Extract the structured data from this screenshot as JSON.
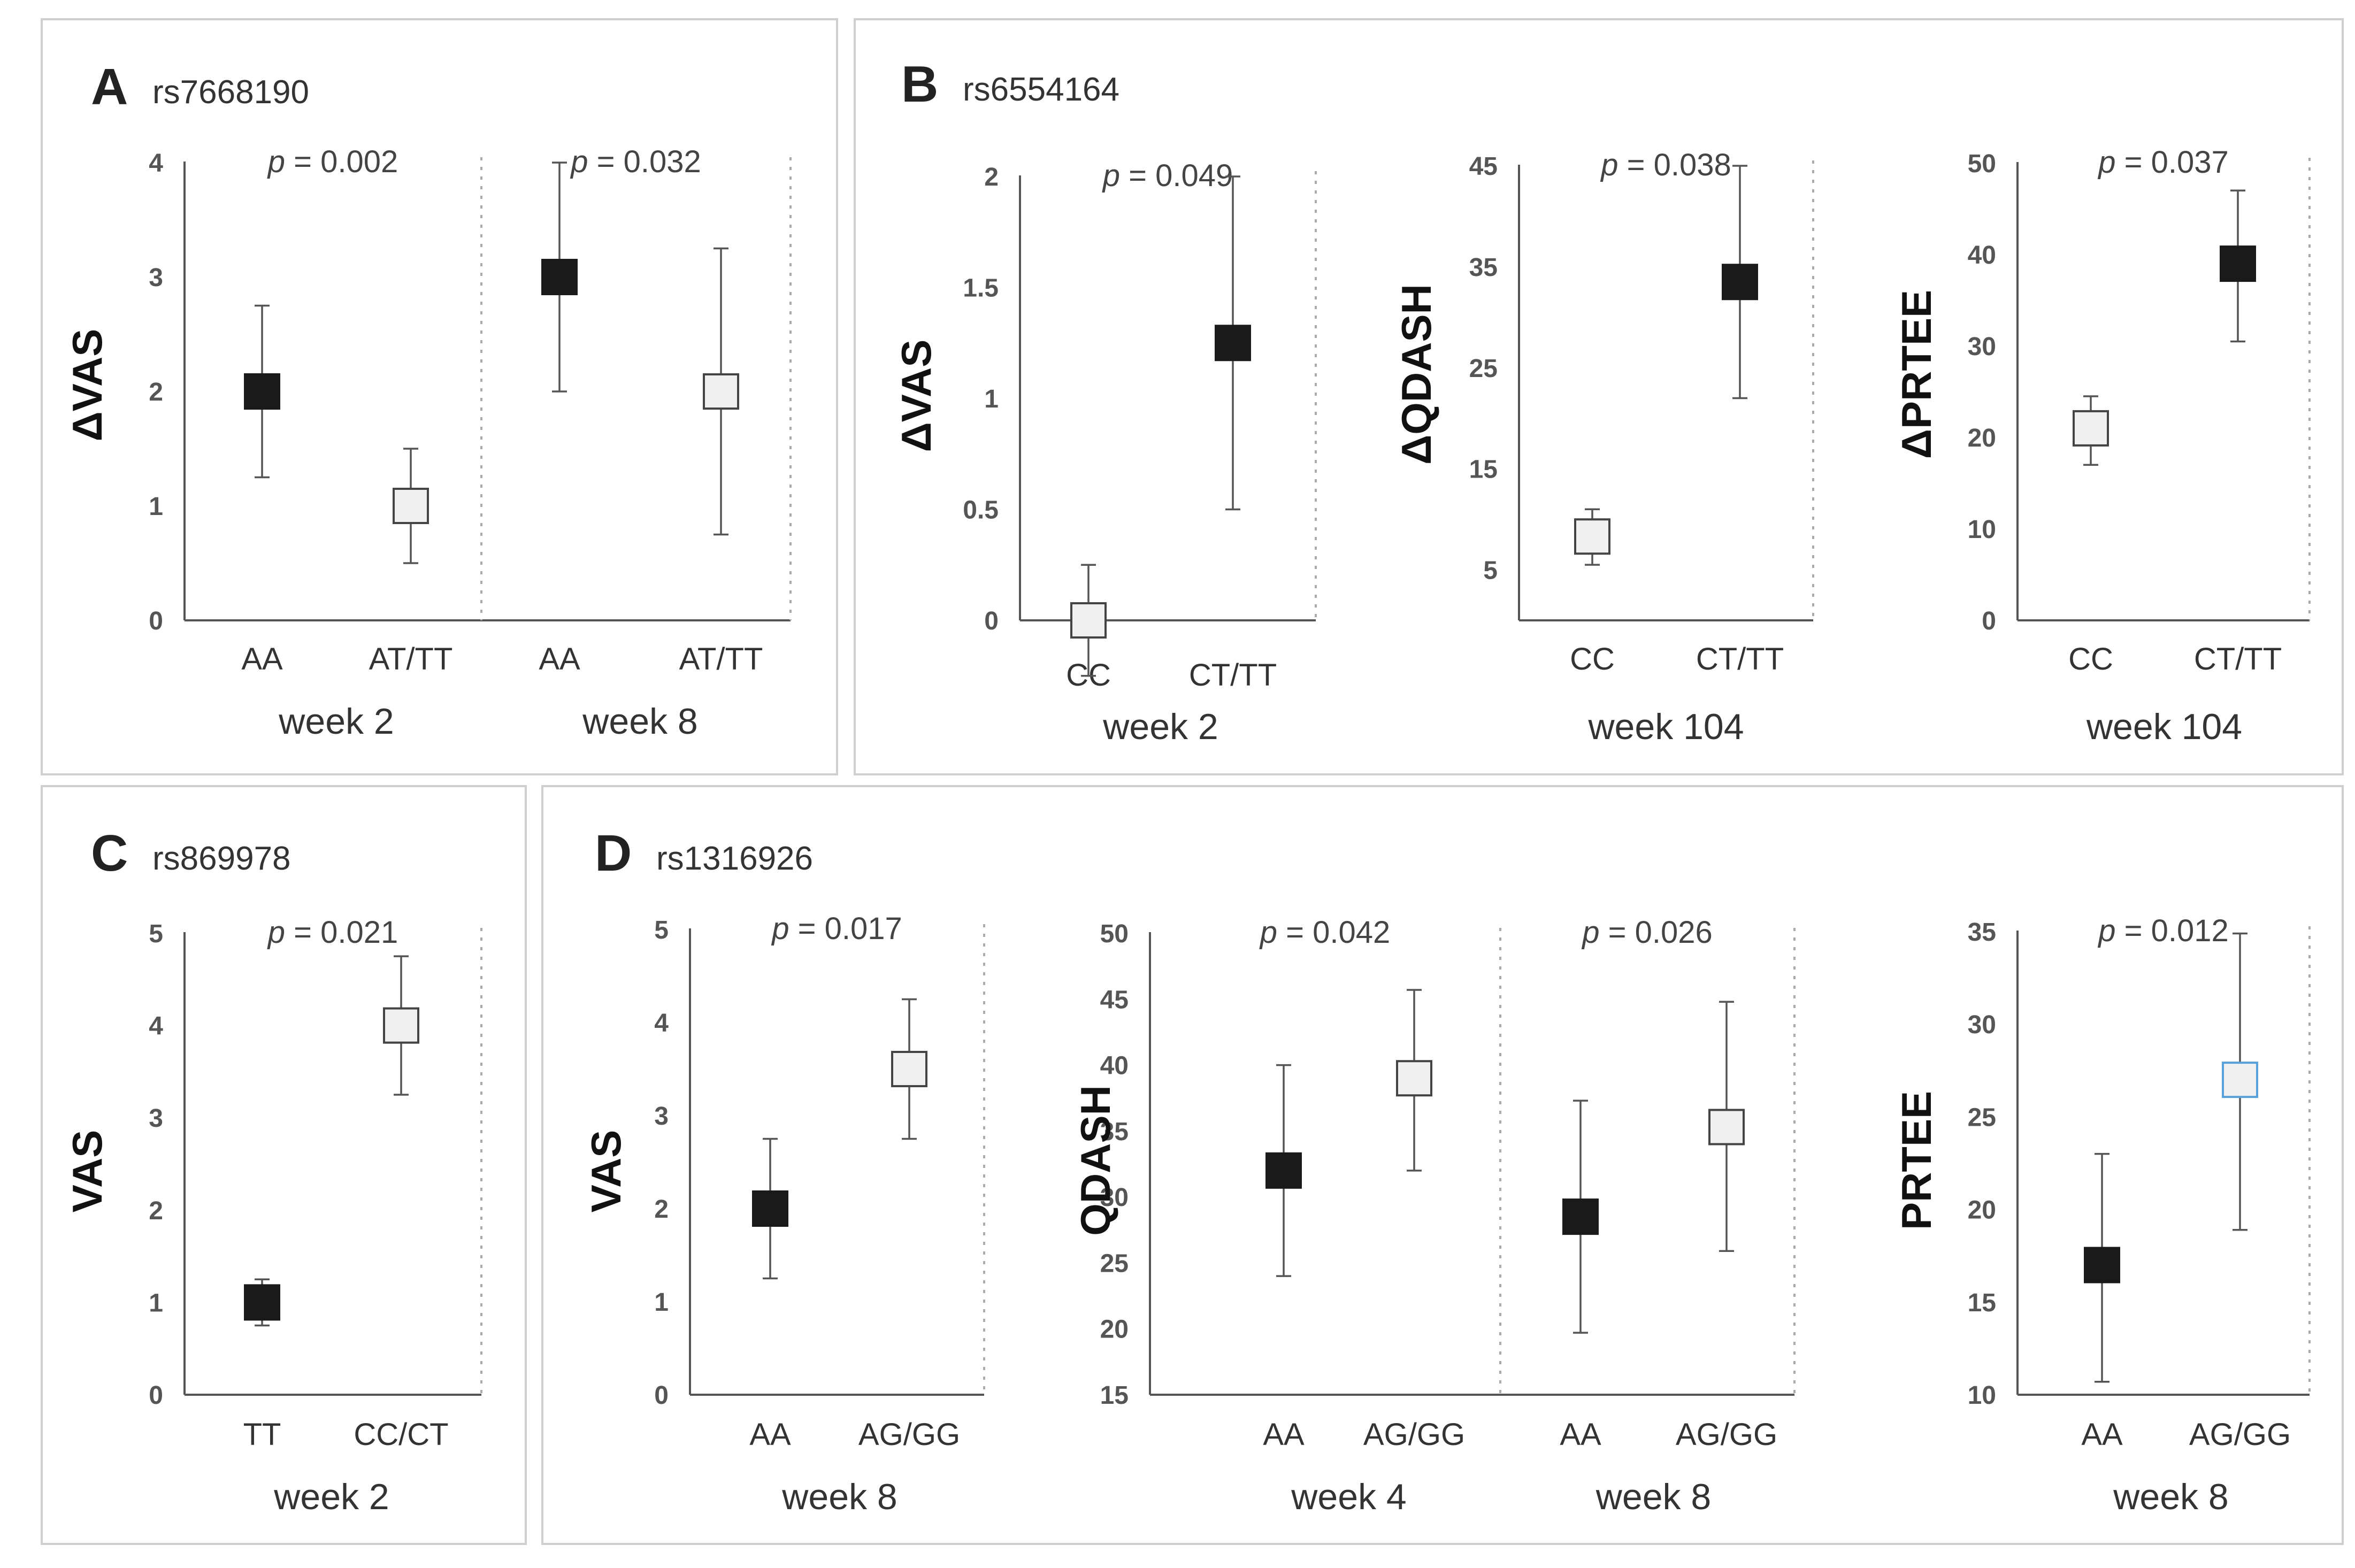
{
  "figure": {
    "panels": [
      {
        "letter": "A",
        "snp": "rs7668190"
      },
      {
        "letter": "B",
        "snp": "rs6554164"
      },
      {
        "letter": "C",
        "snp": "rs869978"
      },
      {
        "letter": "D",
        "snp": "rs1316926"
      }
    ]
  },
  "colors": {
    "filled": "#1a1a1a",
    "open": "#f0f0f0",
    "open_blue_edge": "#5aa0d8",
    "edge": "#444444"
  },
  "chart_data": [
    {
      "id": "A1",
      "panel": "A",
      "type": "scatter",
      "ylabel": "ΔVAS",
      "ylim": [
        0,
        4
      ],
      "yticks": [
        "0",
        "1",
        "2",
        "3",
        "4"
      ],
      "ytick_values": [
        0,
        1,
        2,
        3,
        4
      ],
      "groups": [
        {
          "label": "week 2",
          "p_prefix": "p",
          "p_text": " = 0.002",
          "categories": [
            "AA",
            "AT/TT"
          ],
          "points": [
            {
              "category": "AA",
              "mean": 2.0,
              "low": 1.25,
              "high": 2.75,
              "fill": "filled"
            },
            {
              "category": "AT/TT",
              "mean": 1.0,
              "low": 0.5,
              "high": 1.5,
              "fill": "open"
            }
          ]
        },
        {
          "label": "week 8",
          "p_prefix": "p",
          "p_text": " = 0.032",
          "categories": [
            "AA",
            "AT/TT"
          ],
          "points": [
            {
              "category": "AA",
              "mean": 3.0,
              "low": 2.0,
              "high": 4.0,
              "fill": "filled"
            },
            {
              "category": "AT/TT",
              "mean": 2.0,
              "low": 0.75,
              "high": 3.25,
              "fill": "open"
            }
          ]
        }
      ]
    },
    {
      "id": "B1",
      "panel": "B",
      "type": "scatter",
      "ylabel": "ΔVAS",
      "ylim": [
        0,
        2
      ],
      "yticks": [
        "0",
        "0.5",
        "1",
        "1.5",
        "2"
      ],
      "ytick_values": [
        0,
        0.5,
        1,
        1.5,
        2
      ],
      "groups": [
        {
          "label": "week 2",
          "p_prefix": "p",
          "p_text": " = 0.049",
          "categories": [
            "CC",
            "CT/TT"
          ],
          "points": [
            {
              "category": "CC",
              "mean": 0.0,
              "low": -0.25,
              "high": 0.25,
              "fill": "open"
            },
            {
              "category": "CT/TT",
              "mean": 1.25,
              "low": 0.5,
              "high": 2.0,
              "fill": "filled"
            }
          ]
        }
      ]
    },
    {
      "id": "B2",
      "panel": "B",
      "type": "scatter",
      "ylabel": "ΔQDASH",
      "ylim": [
        0,
        45
      ],
      "yticks": [
        "5",
        "15",
        "25",
        "35",
        "45"
      ],
      "ytick_values": [
        5,
        15,
        25,
        35,
        45
      ],
      "groups": [
        {
          "label": "week 104",
          "p_prefix": "p",
          "p_text": " = 0.038",
          "categories": [
            "CC",
            "CT/TT"
          ],
          "points": [
            {
              "category": "CC",
              "mean": 8.3,
              "low": 5.5,
              "high": 11.0,
              "fill": "open"
            },
            {
              "category": "CT/TT",
              "mean": 33.5,
              "low": 22.0,
              "high": 45.0,
              "fill": "filled"
            }
          ]
        }
      ]
    },
    {
      "id": "B3",
      "panel": "B",
      "type": "scatter",
      "ylabel": "ΔPRTEE",
      "ylim": [
        0,
        50
      ],
      "yticks": [
        "0",
        "10",
        "20",
        "30",
        "40",
        "50"
      ],
      "ytick_values": [
        0,
        10,
        20,
        30,
        40,
        50
      ],
      "groups": [
        {
          "label": "week 104",
          "p_prefix": "p",
          "p_text": " = 0.037",
          "categories": [
            "CC",
            "CT/TT"
          ],
          "points": [
            {
              "category": "CC",
              "mean": 21.0,
              "low": 17.0,
              "high": 24.5,
              "fill": "open"
            },
            {
              "category": "CT/TT",
              "mean": 39.0,
              "low": 30.5,
              "high": 47.0,
              "fill": "filled"
            }
          ]
        }
      ]
    },
    {
      "id": "C1",
      "panel": "C",
      "type": "scatter",
      "ylabel": "VAS",
      "ylim": [
        0,
        5
      ],
      "yticks": [
        "0",
        "1",
        "2",
        "3",
        "4",
        "5"
      ],
      "ytick_values": [
        0,
        1,
        2,
        3,
        4,
        5
      ],
      "groups": [
        {
          "label": "week 2",
          "p_prefix": "p",
          "p_text": " = 0.021",
          "categories": [
            "TT",
            "CC/CT"
          ],
          "points": [
            {
              "category": "TT",
              "mean": 1.0,
              "low": 0.75,
              "high": 1.25,
              "fill": "filled"
            },
            {
              "category": "CC/CT",
              "mean": 4.0,
              "low": 3.25,
              "high": 4.75,
              "fill": "open"
            }
          ]
        }
      ]
    },
    {
      "id": "D1",
      "panel": "D",
      "type": "scatter",
      "ylabel": "VAS",
      "ylim": [
        0,
        5
      ],
      "yticks": [
        "0",
        "1",
        "2",
        "3",
        "4",
        "5"
      ],
      "ytick_values": [
        0,
        1,
        2,
        3,
        4,
        5
      ],
      "groups": [
        {
          "label": "week 8",
          "p_prefix": "p",
          "p_text": " = 0.017",
          "categories": [
            "AA",
            "AG/GG"
          ],
          "points": [
            {
              "category": "AA",
              "mean": 2.0,
              "low": 1.25,
              "high": 2.75,
              "fill": "filled"
            },
            {
              "category": "AG/GG",
              "mean": 3.5,
              "low": 2.75,
              "high": 4.25,
              "fill": "open"
            }
          ]
        }
      ]
    },
    {
      "id": "D2",
      "panel": "D",
      "type": "scatter",
      "ylabel": "QDASH",
      "ylim": [
        15,
        50
      ],
      "yticks": [
        "15",
        "20",
        "25",
        "30",
        "35",
        "40",
        "45",
        "50"
      ],
      "ytick_values": [
        15,
        20,
        25,
        30,
        35,
        40,
        45,
        50
      ],
      "groups": [
        {
          "label": "week 4",
          "p_prefix": "p",
          "p_text": " = 0.042",
          "categories": [
            "AA",
            "AG/GG"
          ],
          "points": [
            {
              "category": "AA",
              "mean": 32.0,
              "low": 24.0,
              "high": 40.0,
              "fill": "filled"
            },
            {
              "category": "AG/GG",
              "mean": 39.0,
              "low": 32.0,
              "high": 45.7,
              "fill": "open"
            }
          ]
        },
        {
          "label": "week 8",
          "p_prefix": "p",
          "p_text": " = 0.026",
          "categories": [
            "AA",
            "AG/GG"
          ],
          "points": [
            {
              "category": "AA",
              "mean": 28.5,
              "low": 19.7,
              "high": 37.3,
              "fill": "filled"
            },
            {
              "category": "AG/GG",
              "mean": 35.3,
              "low": 25.9,
              "high": 44.8,
              "fill": "open"
            }
          ]
        }
      ]
    },
    {
      "id": "D3",
      "panel": "D",
      "type": "scatter",
      "ylabel": "PRTEE",
      "ylim": [
        10,
        35
      ],
      "yticks": [
        "10",
        "15",
        "20",
        "25",
        "30",
        "35"
      ],
      "ytick_values": [
        10,
        15,
        20,
        25,
        30,
        35
      ],
      "groups": [
        {
          "label": "week 8",
          "p_prefix": "p",
          "p_text": " = 0.012",
          "categories": [
            "AA",
            "AG/GG"
          ],
          "points": [
            {
              "category": "AA",
              "mean": 17.0,
              "low": 10.7,
              "high": 23.0,
              "fill": "filled"
            },
            {
              "category": "AG/GG",
              "mean": 27.0,
              "low": 18.9,
              "high": 34.9,
              "fill": "open_blue"
            }
          ]
        }
      ]
    }
  ]
}
